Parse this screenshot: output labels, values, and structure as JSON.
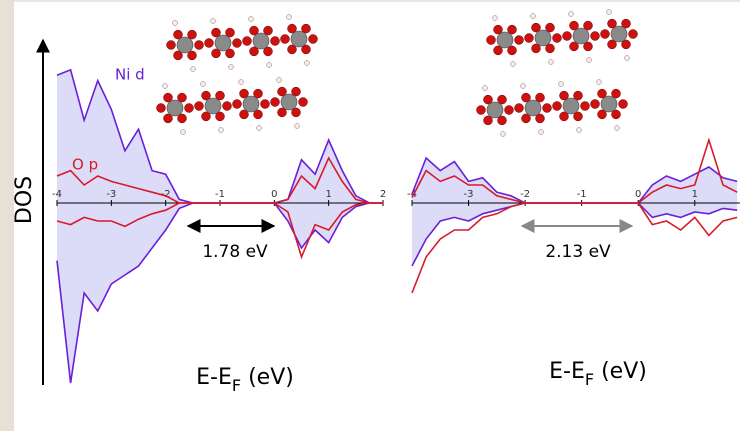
{
  "chart_data": [
    {
      "type": "dos",
      "ylabel": "DOS",
      "xlabel": {
        "main": "E-E",
        "sub": "F",
        "tail": " (eV)"
      },
      "gap_label": "1.78 eV",
      "area_color": "#dcdcf8",
      "xlim": [
        -4,
        2
      ],
      "xticks": [
        -4,
        -3,
        -2,
        -1,
        0,
        1,
        2
      ],
      "ylim": [
        -11,
        11
      ],
      "x": [
        -4,
        -3.75,
        -3.5,
        -3.25,
        -3,
        -2.75,
        -2.5,
        -2.25,
        -2,
        -1.75,
        -1.5,
        -1.25,
        -1,
        -0.75,
        -0.5,
        -0.25,
        0,
        0.25,
        0.5,
        0.75,
        1,
        1.25,
        1.5,
        1.75,
        2
      ],
      "series": [
        {
          "name": "Ni d",
          "color": "#6a1fd8",
          "up": [
            7.1,
            7.4,
            4.6,
            6.8,
            5.2,
            2.9,
            4.1,
            1.8,
            1.6,
            0.2,
            0,
            0,
            0,
            0,
            0,
            0,
            0,
            0.2,
            2.4,
            1.6,
            3.5,
            1.8,
            0.4,
            0,
            0
          ],
          "down": [
            -3.2,
            -10,
            -5,
            -6,
            -4.5,
            -4,
            -3.5,
            -2.5,
            -1.5,
            -0.3,
            0,
            0,
            0,
            0,
            0,
            0,
            0,
            -1,
            -2.5,
            -1.5,
            -2.2,
            -0.8,
            -0.2,
            0,
            0
          ]
        },
        {
          "name": "O p",
          "color": "#d81a2a",
          "up": [
            1.5,
            1.8,
            1,
            1.5,
            1.2,
            1,
            0.8,
            0.6,
            0.4,
            0,
            0,
            0,
            0,
            0,
            0,
            0,
            0,
            0.2,
            1.5,
            0.8,
            2.5,
            1.2,
            0.2,
            0,
            0
          ],
          "down": [
            -1,
            -1.2,
            -0.8,
            -1,
            -1,
            -1.3,
            -0.9,
            -0.6,
            -0.4,
            0,
            0,
            0,
            0,
            0,
            0,
            0,
            0,
            -0.5,
            -3,
            -1.2,
            -1.5,
            -0.5,
            -0.1,
            0,
            0
          ]
        }
      ]
    },
    {
      "type": "dos",
      "xlabel": {
        "main": "E-E",
        "sub": "F",
        "tail": " (eV)"
      },
      "gap_label": "2.13 eV",
      "area_color": "#dcdcf8",
      "xlim": [
        -4,
        1.8
      ],
      "xticks": [
        -4,
        -3,
        -2,
        -1,
        0,
        1
      ],
      "ylim": [
        -11,
        11
      ],
      "x": [
        -4,
        -3.75,
        -3.5,
        -3.25,
        -3,
        -2.75,
        -2.5,
        -2.25,
        -2,
        -1.75,
        -1.5,
        -1.25,
        -1,
        -0.75,
        -0.5,
        -0.25,
        0,
        0.25,
        0.5,
        0.75,
        1,
        1.25,
        1.5,
        1.75
      ],
      "series": [
        {
          "color": "#6a1fd8",
          "up": [
            0.5,
            2.5,
            1.8,
            2.3,
            1.2,
            1.4,
            0.6,
            0.4,
            0,
            0,
            0,
            0,
            0,
            0,
            0,
            0,
            0,
            1,
            1.5,
            1.2,
            1.6,
            2,
            1.4,
            1.2
          ],
          "down": [
            -3.5,
            -2,
            -1,
            -0.8,
            -1,
            -0.6,
            -0.4,
            -0.2,
            0,
            0,
            0,
            0,
            0,
            0,
            0,
            0,
            0,
            -0.8,
            -0.6,
            -0.8,
            -0.5,
            -0.6,
            -0.3,
            -0.4
          ]
        },
        {
          "color": "#d81a2a",
          "up": [
            0.3,
            1.8,
            1.2,
            1.5,
            1,
            1,
            0.4,
            0.2,
            0,
            0,
            0,
            0,
            0,
            0,
            0,
            0,
            0,
            0.6,
            1,
            0.8,
            1,
            3.5,
            1,
            0.6
          ],
          "down": [
            -5,
            -3,
            -2,
            -1.5,
            -1.5,
            -0.8,
            -0.6,
            -0.2,
            0,
            0,
            0,
            0,
            0,
            0,
            0,
            0,
            0,
            -1.2,
            -1,
            -1.5,
            -0.8,
            -1.8,
            -1,
            -0.8
          ]
        }
      ]
    }
  ]
}
